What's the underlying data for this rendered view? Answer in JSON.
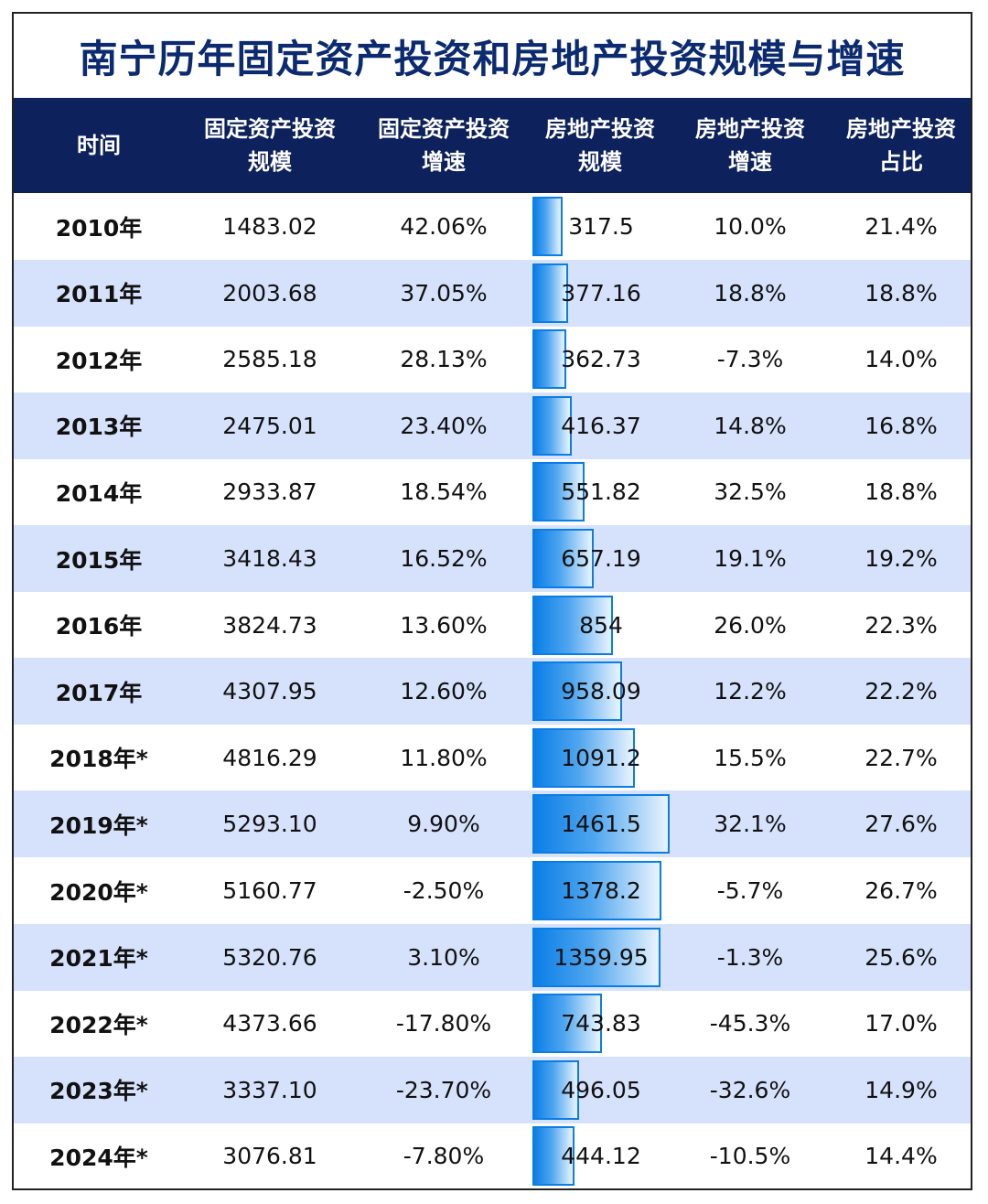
{
  "title": "南宁历年固定资产投资和房地产投资规模与增速",
  "colors": {
    "header_bg": "#0d215d",
    "title": "#0b2a70",
    "alt_row": "#d6e2fb",
    "bar": "#0a7ee6"
  },
  "headers": [
    "时间",
    "固定资产投资\n规模",
    "固定资产投资\n增速",
    "房地产投资\n规模",
    "房地产投资\n增速",
    "房地产投资\n占比"
  ],
  "rows": [
    {
      "year": "2010年",
      "fa_scale": "1483.02",
      "fa_growth": "42.06%",
      "re_scale": "317.5",
      "re_growth": "10.0%",
      "re_share": "21.4%"
    },
    {
      "year": "2011年",
      "fa_scale": "2003.68",
      "fa_growth": "37.05%",
      "re_scale": "377.16",
      "re_growth": "18.8%",
      "re_share": "18.8%"
    },
    {
      "year": "2012年",
      "fa_scale": "2585.18",
      "fa_growth": "28.13%",
      "re_scale": "362.73",
      "re_growth": "-7.3%",
      "re_share": "14.0%"
    },
    {
      "year": "2013年",
      "fa_scale": "2475.01",
      "fa_growth": "23.40%",
      "re_scale": "416.37",
      "re_growth": "14.8%",
      "re_share": "16.8%"
    },
    {
      "year": "2014年",
      "fa_scale": "2933.87",
      "fa_growth": "18.54%",
      "re_scale": "551.82",
      "re_growth": "32.5%",
      "re_share": "18.8%"
    },
    {
      "year": "2015年",
      "fa_scale": "3418.43",
      "fa_growth": "16.52%",
      "re_scale": "657.19",
      "re_growth": "19.1%",
      "re_share": "19.2%"
    },
    {
      "year": "2016年",
      "fa_scale": "3824.73",
      "fa_growth": "13.60%",
      "re_scale": "854",
      "re_growth": "26.0%",
      "re_share": "22.3%"
    },
    {
      "year": "2017年",
      "fa_scale": "4307.95",
      "fa_growth": "12.60%",
      "re_scale": "958.09",
      "re_growth": "12.2%",
      "re_share": "22.2%"
    },
    {
      "year": "2018年*",
      "fa_scale": "4816.29",
      "fa_growth": "11.80%",
      "re_scale": "1091.2",
      "re_growth": "15.5%",
      "re_share": "22.7%"
    },
    {
      "year": "2019年*",
      "fa_scale": "5293.10",
      "fa_growth": "9.90%",
      "re_scale": "1461.5",
      "re_growth": "32.1%",
      "re_share": "27.6%"
    },
    {
      "year": "2020年*",
      "fa_scale": "5160.77",
      "fa_growth": "-2.50%",
      "re_scale": "1378.2",
      "re_growth": "-5.7%",
      "re_share": "26.7%"
    },
    {
      "year": "2021年*",
      "fa_scale": "5320.76",
      "fa_growth": "3.10%",
      "re_scale": "1359.95",
      "re_growth": "-1.3%",
      "re_share": "25.6%"
    },
    {
      "year": "2022年*",
      "fa_scale": "4373.66",
      "fa_growth": "-17.80%",
      "re_scale": "743.83",
      "re_growth": "-45.3%",
      "re_share": "17.0%"
    },
    {
      "year": "2023年*",
      "fa_scale": "3337.10",
      "fa_growth": "-23.70%",
      "re_scale": "496.05",
      "re_growth": "-32.6%",
      "re_share": "14.9%"
    },
    {
      "year": "2024年*",
      "fa_scale": "3076.81",
      "fa_growth": "-7.80%",
      "re_scale": "444.12",
      "re_growth": "-10.5%",
      "re_share": "14.4%"
    }
  ],
  "chart_data": {
    "type": "table",
    "title": "南宁历年固定资产投资和房地产投资规模与增速",
    "columns": [
      "时间",
      "固定资产投资规模",
      "固定资产投资增速",
      "房地产投资规模",
      "房地产投资增速",
      "房地产投资占比"
    ],
    "databar_column": "房地产投资规模",
    "databar_max": 1461.5,
    "categories": [
      "2010年",
      "2011年",
      "2012年",
      "2013年",
      "2014年",
      "2015年",
      "2016年",
      "2017年",
      "2018年*",
      "2019年*",
      "2020年*",
      "2021年*",
      "2022年*",
      "2023年*",
      "2024年*"
    ],
    "series": [
      {
        "name": "固定资产投资规模",
        "values": [
          1483.02,
          2003.68,
          2585.18,
          2475.01,
          2933.87,
          3418.43,
          3824.73,
          4307.95,
          4816.29,
          5293.1,
          5160.77,
          5320.76,
          4373.66,
          3337.1,
          3076.81
        ]
      },
      {
        "name": "固定资产投资增速",
        "values": [
          42.06,
          37.05,
          28.13,
          23.4,
          18.54,
          16.52,
          13.6,
          12.6,
          11.8,
          9.9,
          -2.5,
          3.1,
          -17.8,
          -23.7,
          -7.8
        ]
      },
      {
        "name": "房地产投资规模",
        "values": [
          317.5,
          377.16,
          362.73,
          416.37,
          551.82,
          657.19,
          854,
          958.09,
          1091.2,
          1461.5,
          1378.2,
          1359.95,
          743.83,
          496.05,
          444.12
        ]
      },
      {
        "name": "房地产投资增速",
        "values": [
          10.0,
          18.8,
          -7.3,
          14.8,
          32.5,
          19.1,
          26.0,
          12.2,
          15.5,
          32.1,
          -5.7,
          -1.3,
          -45.3,
          -32.6,
          -10.5
        ]
      },
      {
        "name": "房地产投资占比",
        "values": [
          21.4,
          18.8,
          14.0,
          16.8,
          18.8,
          19.2,
          22.3,
          22.2,
          22.7,
          27.6,
          26.7,
          25.6,
          17.0,
          14.9,
          14.4
        ]
      }
    ]
  }
}
